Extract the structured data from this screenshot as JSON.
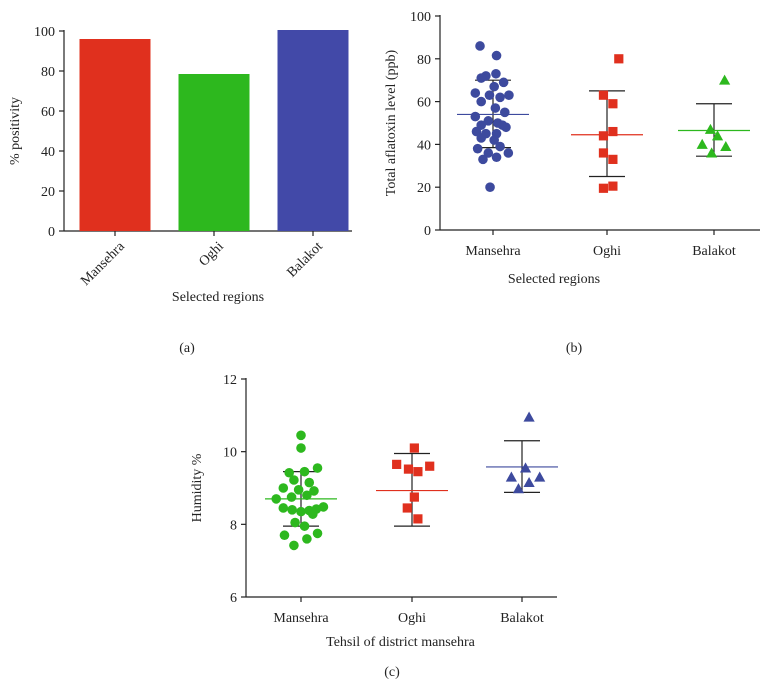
{
  "chart_data": [
    {
      "panel": "(a)",
      "type": "bar",
      "ylabel": "% positivity",
      "xlabel": "Selected regions",
      "ylim": [
        0,
        100
      ],
      "yticks": [
        0,
        20,
        40,
        60,
        80,
        100
      ],
      "categories": [
        "Mansehra",
        "Oghi",
        "Balakot"
      ],
      "values": [
        96,
        78.5,
        100.5
      ],
      "colors": [
        "#e0301e",
        "#2db81e",
        "#4249a8"
      ]
    },
    {
      "panel": "(b)",
      "type": "scatter",
      "ylabel": "Total aflatoxin level (ppb)",
      "xlabel": "Selected regions",
      "ylim": [
        0,
        100
      ],
      "yticks": [
        0,
        20,
        40,
        60,
        80,
        100
      ],
      "categories": [
        "Mansehra",
        "Oghi",
        "Balakot"
      ],
      "series": [
        {
          "name": "Mansehra",
          "color": "#3d4a9e",
          "marker": "circle",
          "mean": 54,
          "upper": 70,
          "lower": 38.5,
          "points": [
            [
              -0.22,
              86
            ],
            [
              0.06,
              81.5
            ],
            [
              -0.12,
              72
            ],
            [
              0.05,
              73
            ],
            [
              -0.2,
              71
            ],
            [
              0.02,
              67
            ],
            [
              0.18,
              69
            ],
            [
              -0.3,
              64
            ],
            [
              -0.06,
              63
            ],
            [
              0.12,
              62
            ],
            [
              0.27,
              63
            ],
            [
              -0.2,
              60
            ],
            [
              0.04,
              57
            ],
            [
              0.2,
              55
            ],
            [
              -0.3,
              53
            ],
            [
              -0.08,
              51
            ],
            [
              0.08,
              50
            ],
            [
              -0.2,
              49
            ],
            [
              0.16,
              49
            ],
            [
              -0.28,
              46
            ],
            [
              -0.12,
              45
            ],
            [
              0.06,
              45
            ],
            [
              0.22,
              48
            ],
            [
              -0.2,
              43
            ],
            [
              0.02,
              42
            ],
            [
              -0.26,
              38
            ],
            [
              0.12,
              39
            ],
            [
              -0.08,
              36
            ],
            [
              0.26,
              36
            ],
            [
              -0.17,
              33
            ],
            [
              0.06,
              34
            ],
            [
              -0.05,
              20
            ]
          ]
        },
        {
          "name": "Oghi",
          "color": "#e0301e",
          "marker": "square",
          "mean": 44.5,
          "upper": 65,
          "lower": 25,
          "points": [
            [
              0.2,
              80
            ],
            [
              -0.06,
              63
            ],
            [
              0.1,
              59
            ],
            [
              0.1,
              46
            ],
            [
              -0.06,
              44
            ],
            [
              -0.06,
              36
            ],
            [
              0.1,
              33
            ],
            [
              -0.06,
              19.5
            ],
            [
              0.1,
              20.5
            ]
          ]
        },
        {
          "name": "Balakot",
          "color": "#2db81e",
          "marker": "triangle",
          "mean": 46.5,
          "upper": 59,
          "lower": 34.5,
          "points": [
            [
              0.18,
              70
            ],
            [
              -0.06,
              47
            ],
            [
              0.06,
              44
            ],
            [
              -0.2,
              40
            ],
            [
              0.2,
              39
            ],
            [
              -0.04,
              36
            ]
          ]
        }
      ]
    },
    {
      "panel": "(c)",
      "type": "scatter",
      "ylabel": "Humidity %",
      "xlabel": "Tehsil of district mansehra",
      "ylim": [
        6,
        12
      ],
      "yticks": [
        6,
        8,
        10,
        12
      ],
      "categories": [
        "Mansehra",
        "Oghi",
        "Balakot"
      ],
      "series": [
        {
          "name": "Mansehra",
          "color": "#2db81e",
          "marker": "circle",
          "mean": 8.7,
          "upper": 9.45,
          "lower": 7.95,
          "points": [
            [
              0.0,
              10.45
            ],
            [
              0.0,
              10.1
            ],
            [
              -0.2,
              9.42
            ],
            [
              0.06,
              9.45
            ],
            [
              0.28,
              9.55
            ],
            [
              -0.12,
              9.22
            ],
            [
              0.14,
              9.15
            ],
            [
              -0.3,
              9.0
            ],
            [
              -0.04,
              8.95
            ],
            [
              0.22,
              8.92
            ],
            [
              -0.42,
              8.7
            ],
            [
              -0.16,
              8.75
            ],
            [
              0.1,
              8.8
            ],
            [
              -0.3,
              8.45
            ],
            [
              -0.15,
              8.4
            ],
            [
              0.0,
              8.35
            ],
            [
              0.14,
              8.38
            ],
            [
              0.26,
              8.42
            ],
            [
              0.38,
              8.48
            ],
            [
              0.2,
              8.28
            ],
            [
              -0.1,
              8.05
            ],
            [
              0.06,
              7.95
            ],
            [
              0.28,
              7.75
            ],
            [
              -0.28,
              7.7
            ],
            [
              0.1,
              7.6
            ],
            [
              -0.12,
              7.42
            ]
          ]
        },
        {
          "name": "Oghi",
          "color": "#e0301e",
          "marker": "square",
          "mean": 8.93,
          "upper": 9.95,
          "lower": 7.95,
          "points": [
            [
              0.04,
              10.1
            ],
            [
              -0.26,
              9.65
            ],
            [
              -0.06,
              9.52
            ],
            [
              0.1,
              9.45
            ],
            [
              0.3,
              9.6
            ],
            [
              0.04,
              8.75
            ],
            [
              -0.08,
              8.45
            ],
            [
              0.1,
              8.15
            ]
          ]
        },
        {
          "name": "Balakot",
          "color": "#3d4a9e",
          "marker": "triangle",
          "mean": 9.58,
          "upper": 10.3,
          "lower": 8.88,
          "points": [
            [
              0.12,
              10.95
            ],
            [
              0.06,
              9.55
            ],
            [
              -0.18,
              9.3
            ],
            [
              0.3,
              9.3
            ],
            [
              0.12,
              9.15
            ],
            [
              -0.06,
              8.98
            ]
          ]
        }
      ]
    }
  ]
}
